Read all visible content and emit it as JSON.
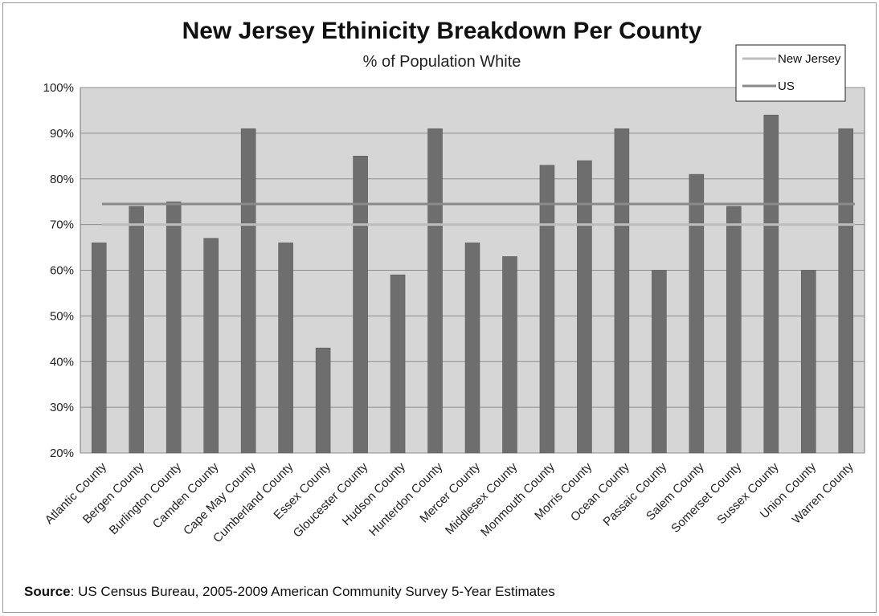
{
  "chart_data": {
    "type": "bar",
    "title": "New Jersey Ethinicity Breakdown Per County",
    "subtitle": "% of Population White",
    "categories": [
      "Atlantic County",
      "Bergen County",
      "Burlington County",
      "Camden County",
      "Cape May County",
      "Cumberland County",
      "Essex County",
      "Gloucester County",
      "Hudson County",
      "Hunterdon County",
      "Mercer County",
      "Middlesex County",
      "Monmouth County",
      "Morris County",
      "Ocean County",
      "Passaic County",
      "Salem County",
      "Somerset County",
      "Sussex County",
      "Union County",
      "Warren County"
    ],
    "values": [
      66,
      74,
      75,
      67,
      91,
      66,
      43,
      85,
      59,
      91,
      66,
      63,
      83,
      84,
      91,
      60,
      81,
      74,
      94,
      60,
      91
    ],
    "ylim": [
      20,
      100
    ],
    "yticks": [
      "20%",
      "30%",
      "40%",
      "50%",
      "60%",
      "70%",
      "80%",
      "90%",
      "100%"
    ],
    "grid": true,
    "reference_lines": [
      {
        "name": "New Jersey",
        "value": 70
      },
      {
        "name": "US",
        "value": 74.5
      }
    ],
    "legend_position": "top-right",
    "colors": {
      "bar": "#6e6e6e",
      "plot_bg": "#d6d6d6",
      "new_jersey_line": "#bdbdbd",
      "us_line": "#8a8a8a",
      "grid": "#8c8c8c"
    }
  },
  "footer": {
    "source_label": "Source",
    "source_text": ": US Census Bureau, 2005-2009 American Community Survey 5-Year Estimates"
  }
}
